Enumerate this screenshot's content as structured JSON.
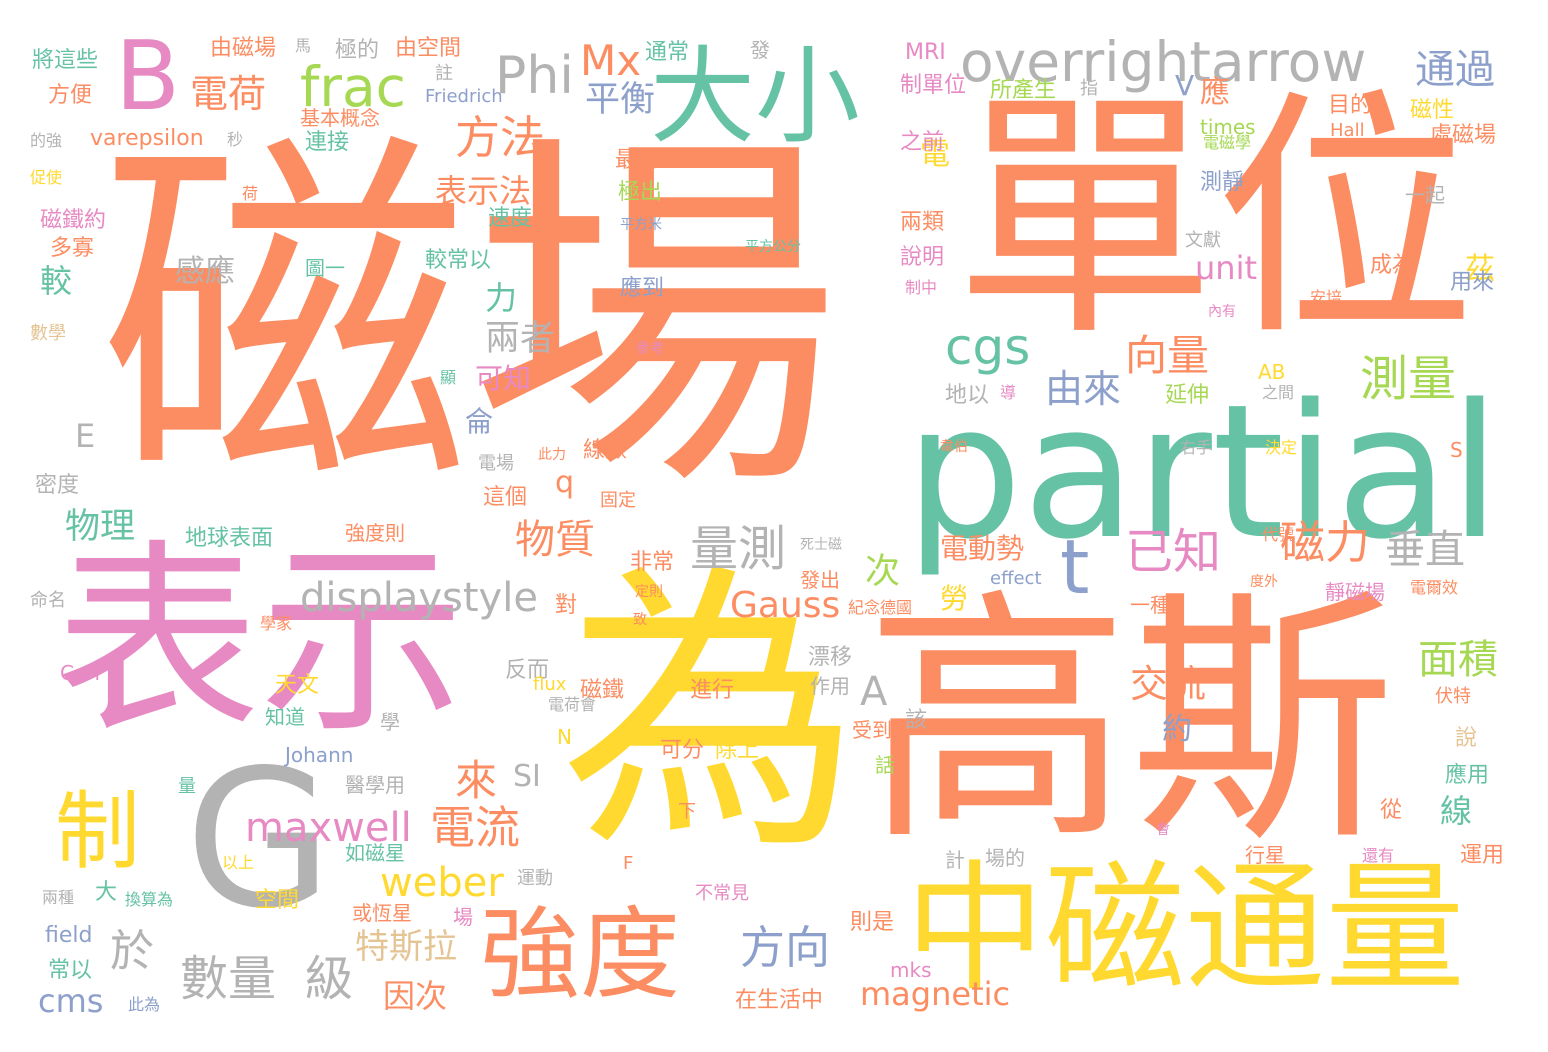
{
  "palette": {
    "orange": "#fc8d62",
    "green": "#66c2a5",
    "pink": "#e78ac3",
    "yellow": "#ffd92f",
    "gray": "#b3b3b3",
    "blue": "#8da0cb",
    "lime": "#a6d854",
    "tan": "#e5c494"
  },
  "words": {
    "w_磁場_big": "磁場",
    "w_單位": "單位",
    "w_表示": "表示",
    "w_為": "為",
    "w_高斯": "高斯",
    "w_G": "G",
    "w_partial": "partial",
    "w_中磁通量": "中磁通量",
    "w_強度": "強度",
    "w_大小": "大小",
    "w_overrightarrow": "overrightarrow",
    "w_B": "B",
    "w_frac": "frac",
    "w_Phi": "Phi",
    "w_Mx": "Mx",
    "w_電荷": "電荷",
    "w_方法": "方法",
    "w_表示法": "表示法",
    "w_cgs": "cgs",
    "w_t": "t",
    "w_制": "制",
    "w_displaystyle": "displaystyle",
    "w_Gauss": "Gauss",
    "w_maxwell": "maxwell",
    "w_電流": "電流",
    "w_weber": "weber",
    "w_已知": "已知",
    "w_磁力": "磁力",
    "w_量測": "量測",
    "w_測量": "測量",
    "w_向量": "向量",
    "w_通過": "通過",
    "w_平衡": "平衡",
    "w_物質": "物質",
    "w_方向": "方向",
    "w_數量": "數量",
    "w_級": "級",
    "w_於": "於",
    "w_magnetic": "magnetic",
    "w_cms": "cms",
    "w_面積": "面積",
    "w_垂直": "垂直",
    "w_交流": "交流",
    "w_unit": "unit",
    "w_A": "A",
    "w_SI": "SI",
    "w_E": "E",
    "w_q": "q",
    "w_由來": "由來",
    "w_兩者": "兩者",
    "w_力": "力",
    "w_可知": "可知",
    "w_物理": "物理",
    "w_感應": "感應",
    "w_較": "較",
    "w_來": "來",
    "w_次": "次",
    "w_電動勢": "電動勢",
    "w_特斯拉": "特斯拉",
    "w_因次": "因次",
    "w_V": "V",
    "w_應": "應",
    "w_茲": "茲",
    "w_線": "線",
    "w_約": "約",
    "w_勞": "勞",
    "w_電": "電",
    "w_侖": "侖",
    "w_MRI": "MRI",
    "w_制單位": "制單位",
    "w_所產生": "所產生",
    "w_磁性": "磁性",
    "w_處磁場": "處磁場",
    "w_將這些": "將這些",
    "w_方便": "方便",
    "w_varepsilon": "varepsilon",
    "w_由磁場": "由磁場",
    "w_由空間": "由空間",
    "w_極的": "極的",
    "w_通常": "通常",
    "w_基本概念": "基本概念",
    "w_連接": "連接",
    "w_Friedrich": "Friedrich",
    "w_磁鐵約": "磁鐵約",
    "w_多寡": "多寡",
    "w_數學": "數學",
    "w_密度": "密度",
    "w_命名": "命名",
    "w_Carl": "Carl",
    "w_Johann": "Johann",
    "w_field": "field",
    "w_常以": "常以",
    "w_天文": "天文",
    "w_知道": "知道",
    "w_空間": "空間",
    "w_地球表面": "地球表面",
    "w_強度則": "強度則",
    "w_如磁星": "如磁星",
    "w_或恆星": "或恆星",
    "w_在生活中": "在生活中",
    "w_mks": "mks",
    "w_則是": "則是",
    "w_除上": "除上",
    "w_可分": "可分",
    "w_進行": "進行",
    "w_磁鐵": "磁鐵",
    "w_作用": "作用",
    "w_漂移": "漂移",
    "w_反而": "反而",
    "w_對": "對",
    "w_非常": "非常",
    "w_發出": "發出",
    "w_紀念德國": "紀念德國",
    "w_effect": "effect",
    "w_一種": "一種",
    "w_靜磁場": "靜磁場",
    "w_電爾效": "電爾效",
    "w_最初": "最初",
    "w_極出": "極出",
    "w_速度": "速度",
    "w_平方米": "平方米",
    "w_平方公分": "平方公分",
    "w_應到": "應到",
    "w_較常以": "較常以",
    "w_圖一": "圖一",
    "w_兩類": "兩類",
    "w_說明": "說明",
    "w_之前": "之前",
    "w_測靜": "測靜",
    "w_一起": "一起",
    "w_成為": "成為",
    "w_用來": "用來",
    "w_文獻": "文獻",
    "w_目的": "目的",
    "w_Hall": "Hall",
    "w_times": "times",
    "w_電磁學": "電磁學",
    "w_AB": "AB",
    "w_延伸": "延伸",
    "w_地以": "地以",
    "w_線數": "線數",
    "w_固定": "固定",
    "w_這個": "這個",
    "w_電場": "電場",
    "w_S": "S",
    "w_N": "N",
    "w_flux": "flux",
    "w_電荷會": "電荷會",
    "w_醫學用": "醫學用",
    "w_學": "學",
    "w_該": "該",
    "w_受到": "受到",
    "w_話": "話",
    "w_應用": "應用",
    "w_運用": "運用",
    "w_從": "從",
    "w_說": "說",
    "w_行星": "行星",
    "w_計": "計",
    "w_場的": "場的",
    "w_運動": "運動",
    "w_換算為": "換算為",
    "w_兩種": "兩種",
    "w_大": "大",
    "w_量": "量",
    "w_以上": "以上",
    "w_此為": "此為",
    "w_不常見": "不常見",
    "w_下": "下",
    "w_F": "F",
    "w_場": "場",
    "w_伏特": "伏特",
    "w_還有": "還有",
    "w_會": "會",
    "w_促使": "促使",
    "w_的強": "的強",
    "w_秒": "秒",
    "w_荷": "荷",
    "w_註": "註",
    "w_馬": "馬",
    "w_發": "發",
    "w_指": "指",
    "w_右手": "右手",
    "w_代號": "代號",
    "w_決定": "決定",
    "w_之間": "之間",
    "w_安培": "安培",
    "w_內有": "內有",
    "w_制中": "制中",
    "w_導": "導",
    "w_韋伯": "韋伯",
    "w_此力": "此力",
    "w_定則": "定則",
    "w_致": "致",
    "w_死士磁": "死士磁",
    "w_參考": "參考",
    "w_顯": "顯",
    "w_度外": "度外",
    "w_學家": "學家"
  }
}
